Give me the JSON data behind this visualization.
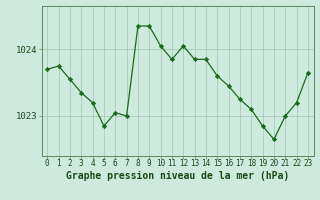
{
  "x": [
    0,
    1,
    2,
    3,
    4,
    5,
    6,
    7,
    8,
    9,
    10,
    11,
    12,
    13,
    14,
    15,
    16,
    17,
    18,
    19,
    20,
    21,
    22,
    23
  ],
  "y": [
    1023.7,
    1023.75,
    1023.55,
    1023.35,
    1023.2,
    1022.85,
    1023.05,
    1023.0,
    1024.35,
    1024.35,
    1024.05,
    1023.85,
    1024.05,
    1023.85,
    1023.85,
    1023.6,
    1023.45,
    1023.25,
    1023.1,
    1022.85,
    1022.65,
    1023.0,
    1023.2,
    1023.65
  ],
  "line_color": "#1a6b1a",
  "marker_color": "#1a6b1a",
  "bg_color": "#ceeade",
  "grid_color": "#aaccbc",
  "xlabel": "Graphe pression niveau de la mer (hPa)",
  "ytick_labels": [
    "1023",
    "1024"
  ],
  "ytick_values": [
    1023,
    1024
  ],
  "ylim": [
    1022.4,
    1024.65
  ],
  "xlim": [
    -0.5,
    23.5
  ],
  "xlabel_fontsize": 7,
  "tick_fontsize": 7,
  "label_color": "#1a4a1a",
  "spine_color": "#5a8a5a"
}
